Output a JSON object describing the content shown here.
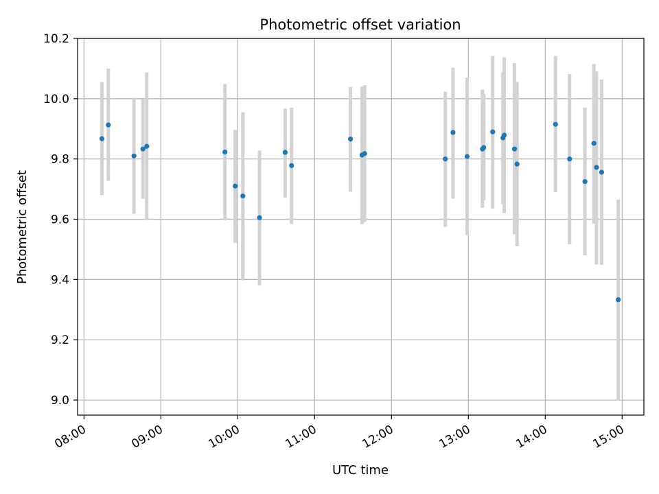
{
  "chart_data": {
    "type": "scatter",
    "title": "Photometric offset variation",
    "xlabel": "UTC time",
    "ylabel": "Photometric offset",
    "xlim": [
      "07:55",
      "15:17"
    ],
    "ylim": [
      8.95,
      10.2
    ],
    "x_ticks": [
      "08:00",
      "09:00",
      "10:00",
      "11:00",
      "12:00",
      "13:00",
      "14:00",
      "15:00"
    ],
    "y_ticks": [
      "9.0",
      "9.2",
      "9.4",
      "9.6",
      "9.8",
      "10.0",
      "10.2"
    ],
    "grid": true,
    "colors": {
      "points": "#1f77b4",
      "error_bars": "#d3d3d3",
      "grid": "#b0b0b0"
    },
    "series": [
      {
        "points": [
          {
            "x": "08:14",
            "y": 9.867,
            "err_low": 9.68,
            "err_high": 10.055
          },
          {
            "x": "08:19",
            "y": 9.913,
            "err_low": 9.727,
            "err_high": 10.1
          },
          {
            "x": "08:39",
            "y": 9.81,
            "err_low": 9.618,
            "err_high": 10.003
          },
          {
            "x": "08:46",
            "y": 9.833,
            "err_low": 9.668,
            "err_high": 9.998
          },
          {
            "x": "08:49",
            "y": 9.842,
            "err_low": 9.597,
            "err_high": 10.087
          },
          {
            "x": "09:50",
            "y": 9.823,
            "err_low": 9.597,
            "err_high": 10.049
          },
          {
            "x": "09:58",
            "y": 9.71,
            "err_low": 9.521,
            "err_high": 9.896
          },
          {
            "x": "10:04",
            "y": 9.677,
            "err_low": 9.397,
            "err_high": 9.955
          },
          {
            "x": "10:17",
            "y": 9.605,
            "err_low": 9.38,
            "err_high": 9.828
          },
          {
            "x": "10:37",
            "y": 9.822,
            "err_low": 9.672,
            "err_high": 9.967
          },
          {
            "x": "10:42",
            "y": 9.778,
            "err_low": 9.584,
            "err_high": 9.97
          },
          {
            "x": "11:28",
            "y": 9.866,
            "err_low": 9.691,
            "err_high": 10.039
          },
          {
            "x": "11:37",
            "y": 9.813,
            "err_low": 9.584,
            "err_high": 10.04
          },
          {
            "x": "11:39",
            "y": 9.818,
            "err_low": 9.591,
            "err_high": 10.045
          },
          {
            "x": "12:42",
            "y": 9.8,
            "err_low": 9.575,
            "err_high": 10.023
          },
          {
            "x": "12:48",
            "y": 9.888,
            "err_low": 9.668,
            "err_high": 10.103
          },
          {
            "x": "12:59",
            "y": 9.808,
            "err_low": 9.547,
            "err_high": 10.07
          },
          {
            "x": "13:11",
            "y": 9.833,
            "err_low": 9.638,
            "err_high": 10.03
          },
          {
            "x": "13:12",
            "y": 9.838,
            "err_low": 9.663,
            "err_high": 10.015
          },
          {
            "x": "13:19",
            "y": 9.89,
            "err_low": 9.635,
            "err_high": 10.142
          },
          {
            "x": "13:27",
            "y": 9.87,
            "err_low": 9.65,
            "err_high": 10.088
          },
          {
            "x": "13:28",
            "y": 9.879,
            "err_low": 9.62,
            "err_high": 10.137
          },
          {
            "x": "13:36",
            "y": 9.833,
            "err_low": 9.55,
            "err_high": 10.118
          },
          {
            "x": "13:38",
            "y": 9.783,
            "err_low": 9.51,
            "err_high": 10.055
          },
          {
            "x": "14:08",
            "y": 9.915,
            "err_low": 9.69,
            "err_high": 10.142
          },
          {
            "x": "14:19",
            "y": 9.8,
            "err_low": 9.517,
            "err_high": 10.082
          },
          {
            "x": "14:31",
            "y": 9.725,
            "err_low": 9.48,
            "err_high": 9.97
          },
          {
            "x": "14:38",
            "y": 9.852,
            "err_low": 9.585,
            "err_high": 10.115
          },
          {
            "x": "14:40",
            "y": 9.772,
            "err_low": 9.45,
            "err_high": 10.09
          },
          {
            "x": "14:44",
            "y": 9.756,
            "err_low": 9.449,
            "err_high": 10.064
          },
          {
            "x": "14:57",
            "y": 9.333,
            "err_low": 8.998,
            "err_high": 9.665
          }
        ]
      }
    ]
  }
}
